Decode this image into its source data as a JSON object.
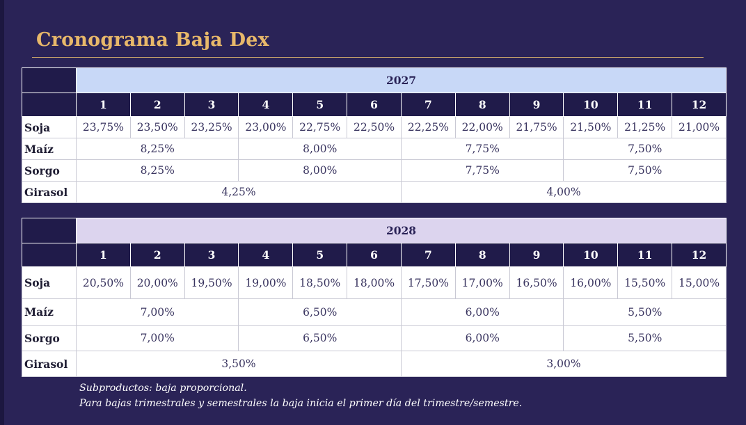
{
  "title": "Cronograma Baja Dex",
  "months": [
    "1",
    "2",
    "3",
    "4",
    "5",
    "6",
    "7",
    "8",
    "9",
    "10",
    "11",
    "12"
  ],
  "tables": [
    {
      "year": "2027",
      "soja": [
        "23,75%",
        "23,50%",
        "23,25%",
        "23,00%",
        "22,75%",
        "22,50%",
        "22,25%",
        "22,00%",
        "21,75%",
        "21,50%",
        "21,25%",
        "21,00%"
      ],
      "maiz": [
        "8,25%",
        "8,00%",
        "7,75%",
        "7,50%"
      ],
      "sorgo": [
        "8,25%",
        "8,00%",
        "7,75%",
        "7,50%"
      ],
      "girasol": [
        "4,25%",
        "4,00%"
      ]
    },
    {
      "year": "2028",
      "soja": [
        "20,50%",
        "20,00%",
        "19,50%",
        "19,00%",
        "18,50%",
        "18,00%",
        "17,50%",
        "17,00%",
        "16,50%",
        "16,00%",
        "15,50%",
        "15,00%"
      ],
      "maiz": [
        "7,00%",
        "6,50%",
        "6,00%",
        "5,50%"
      ],
      "sorgo": [
        "7,00%",
        "6,50%",
        "6,00%",
        "5,50%"
      ],
      "girasol": [
        "3,50%",
        "3,00%"
      ]
    }
  ],
  "crops": {
    "soja": "Soja",
    "maiz": "Maíz",
    "sorgo": "Sorgo",
    "girasol": "Girasol"
  },
  "notes": [
    "Subproductos: baja proporcional.",
    "Para bajas trimestrales y semestrales la baja inicia el primer día del trimestre/semestre."
  ],
  "colors": {
    "background": "#2a2357",
    "title": "#e8b86a",
    "header_dark": "#201b4a",
    "year_2027": "#c8d8f7",
    "year_2028": "#dcd4ee"
  }
}
